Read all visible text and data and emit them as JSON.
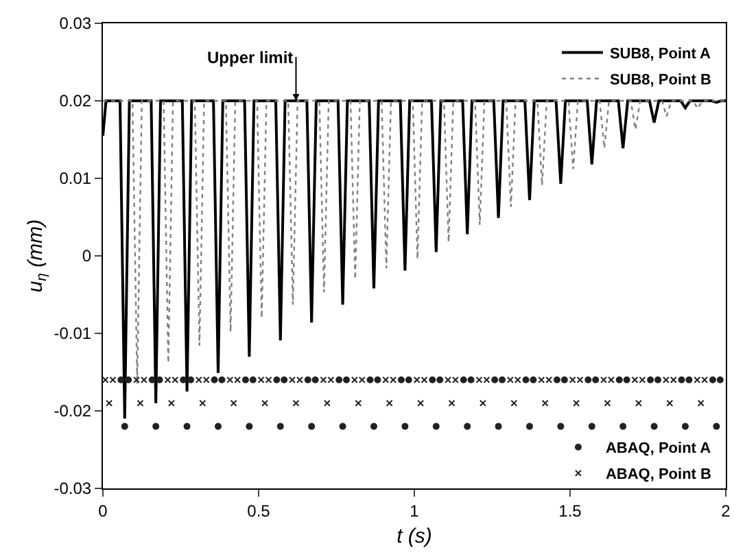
{
  "chart_data": {
    "type": "line",
    "xlabel": "t (s)",
    "ylabel": "u$_{η}$ (mm)",
    "xlim": [
      0,
      2
    ],
    "ylim": [
      -0.03,
      0.03
    ],
    "xticks": [
      0,
      0.5,
      1,
      1.5,
      2
    ],
    "yticks": [
      -0.03,
      -0.02,
      -0.01,
      0,
      0.01,
      0.02,
      0.03
    ],
    "legend": "right",
    "annotations": [
      {
        "text": "Upper limit",
        "x": 0.62,
        "y": 0.02
      }
    ],
    "series": [
      {
        "name": "SUB8, Point A",
        "line_style": "solid",
        "marker": "none",
        "color": "#000000",
        "x": [
          0,
          0.01,
          0.055,
          0.07,
          0.085,
          0.155,
          0.17,
          0.185,
          0.255,
          0.27,
          0.285,
          0.355,
          0.37,
          0.385,
          0.455,
          0.47,
          0.485,
          0.555,
          0.57,
          0.585,
          0.655,
          0.67,
          0.685,
          0.755,
          0.77,
          0.785,
          0.855,
          0.87,
          0.885,
          0.955,
          0.97,
          0.985,
          1.055,
          1.07,
          1.085,
          1.155,
          1.17,
          1.185,
          1.255,
          1.27,
          1.285,
          1.355,
          1.37,
          1.385,
          1.455,
          1.47,
          1.485,
          1.555,
          1.57,
          1.585,
          1.655,
          1.67,
          1.685,
          1.755,
          1.77,
          1.785,
          1.855,
          1.87,
          1.885,
          1.955,
          1.97,
          1.985,
          2
        ],
        "values": [
          0.0155,
          0.02,
          0.02,
          -0.021,
          0.02,
          0.02,
          -0.019,
          0.02,
          0.02,
          -0.0175,
          0.02,
          0.02,
          -0.0151,
          0.02,
          0.02,
          -0.013,
          0.02,
          0.02,
          -0.0109,
          0.02,
          0.02,
          -0.0086,
          0.02,
          0.02,
          -0.0063,
          0.02,
          0.02,
          -0.0042,
          0.02,
          0.02,
          -0.0019,
          0.02,
          0.02,
          0.0005,
          0.02,
          0.02,
          0.0028,
          0.02,
          0.02,
          0.0049,
          0.02,
          0.02,
          0.0072,
          0.02,
          0.02,
          0.0093,
          0.02,
          0.02,
          0.0118,
          0.02,
          0.02,
          0.0139,
          0.02,
          0.02,
          0.0172,
          0.02,
          0.02,
          0.0191,
          0.02,
          0.02,
          0.0198,
          0.02,
          0.02
        ]
      },
      {
        "name": "SUB8, Point B",
        "line_style": "dotted",
        "marker": "none",
        "color": "#808080",
        "x": [
          0,
          0.095,
          0.11,
          0.125,
          0.195,
          0.21,
          0.225,
          0.295,
          0.31,
          0.325,
          0.395,
          0.41,
          0.425,
          0.495,
          0.51,
          0.525,
          0.595,
          0.61,
          0.625,
          0.695,
          0.71,
          0.725,
          0.795,
          0.81,
          0.825,
          0.895,
          0.91,
          0.925,
          0.995,
          1.01,
          1.025,
          1.095,
          1.11,
          1.125,
          1.195,
          1.21,
          1.225,
          1.295,
          1.31,
          1.325,
          1.395,
          1.41,
          1.425,
          1.495,
          1.51,
          1.525,
          1.595,
          1.61,
          1.625,
          1.695,
          1.71,
          1.725,
          1.795,
          1.81,
          1.825,
          1.895,
          1.91,
          1.925,
          2
        ],
        "values": [
          0.02,
          0.02,
          -0.0165,
          0.02,
          0.02,
          -0.0138,
          0.02,
          0.02,
          -0.0116,
          0.02,
          0.02,
          -0.0098,
          0.02,
          0.02,
          -0.008,
          0.02,
          0.02,
          -0.0063,
          0.02,
          0.02,
          -0.0047,
          0.02,
          0.02,
          -0.003,
          0.02,
          0.02,
          -0.0016,
          0.02,
          0.02,
          -0.0004,
          0.02,
          0.02,
          0.0018,
          0.02,
          0.02,
          0.004,
          0.02,
          0.02,
          0.0063,
          0.02,
          0.02,
          0.0091,
          0.02,
          0.02,
          0.0112,
          0.02,
          0.02,
          0.0139,
          0.02,
          0.02,
          0.0163,
          0.02,
          0.02,
          0.018,
          0.02,
          0.02,
          0.019,
          0.02,
          0.02
        ]
      },
      {
        "name": "ABAQ, Point A",
        "type": "scatter",
        "marker": "circle",
        "color": "#222222",
        "x": [
          0.058,
          0.07,
          0.082,
          0.158,
          0.17,
          0.182,
          0.258,
          0.27,
          0.282,
          0.358,
          0.37,
          0.382,
          0.458,
          0.47,
          0.482,
          0.558,
          0.57,
          0.582,
          0.658,
          0.67,
          0.682,
          0.758,
          0.77,
          0.782,
          0.858,
          0.87,
          0.882,
          0.958,
          0.97,
          0.982,
          1.058,
          1.07,
          1.082,
          1.158,
          1.17,
          1.182,
          1.258,
          1.27,
          1.282,
          1.358,
          1.37,
          1.382,
          1.458,
          1.47,
          1.482,
          1.558,
          1.57,
          1.582,
          1.658,
          1.67,
          1.682,
          1.758,
          1.77,
          1.782,
          1.858,
          1.87,
          1.882,
          1.958,
          1.97,
          1.982
        ],
        "values": [
          -0.016,
          -0.022,
          -0.016,
          -0.016,
          -0.022,
          -0.016,
          -0.016,
          -0.022,
          -0.016,
          -0.016,
          -0.022,
          -0.016,
          -0.016,
          -0.022,
          -0.016,
          -0.016,
          -0.022,
          -0.016,
          -0.016,
          -0.022,
          -0.016,
          -0.016,
          -0.022,
          -0.016,
          -0.016,
          -0.022,
          -0.016,
          -0.016,
          -0.022,
          -0.016,
          -0.016,
          -0.022,
          -0.016,
          -0.016,
          -0.022,
          -0.016,
          -0.016,
          -0.022,
          -0.016,
          -0.016,
          -0.022,
          -0.016,
          -0.016,
          -0.022,
          -0.016,
          -0.016,
          -0.022,
          -0.016,
          -0.016,
          -0.022,
          -0.016,
          -0.016,
          -0.022,
          -0.016,
          -0.016,
          -0.022,
          -0.016,
          -0.016,
          -0.022,
          -0.016
        ]
      },
      {
        "name": "ABAQ, Point B",
        "type": "scatter",
        "marker": "cross",
        "color": "#222222",
        "x": [
          0.008,
          0.02,
          0.032,
          0.108,
          0.12,
          0.132,
          0.208,
          0.22,
          0.232,
          0.308,
          0.32,
          0.332,
          0.408,
          0.42,
          0.432,
          0.508,
          0.52,
          0.532,
          0.608,
          0.62,
          0.632,
          0.708,
          0.72,
          0.732,
          0.808,
          0.82,
          0.832,
          0.908,
          0.92,
          0.932,
          1.008,
          1.02,
          1.032,
          1.108,
          1.12,
          1.132,
          1.208,
          1.22,
          1.232,
          1.308,
          1.32,
          1.332,
          1.408,
          1.42,
          1.432,
          1.508,
          1.52,
          1.532,
          1.608,
          1.62,
          1.632,
          1.708,
          1.72,
          1.732,
          1.808,
          1.82,
          1.832,
          1.908,
          1.92,
          1.932
        ],
        "values": [
          -0.016,
          -0.019,
          -0.016,
          -0.016,
          -0.019,
          -0.016,
          -0.016,
          -0.019,
          -0.016,
          -0.016,
          -0.019,
          -0.016,
          -0.016,
          -0.019,
          -0.016,
          -0.016,
          -0.019,
          -0.016,
          -0.016,
          -0.019,
          -0.016,
          -0.016,
          -0.019,
          -0.016,
          -0.016,
          -0.019,
          -0.016,
          -0.016,
          -0.019,
          -0.016,
          -0.016,
          -0.019,
          -0.016,
          -0.016,
          -0.019,
          -0.016,
          -0.016,
          -0.019,
          -0.016,
          -0.016,
          -0.019,
          -0.016,
          -0.016,
          -0.019,
          -0.016,
          -0.016,
          -0.019,
          -0.016,
          -0.016,
          -0.019,
          -0.016,
          -0.016,
          -0.019,
          -0.016,
          -0.016,
          -0.019,
          -0.016,
          -0.016,
          -0.019,
          -0.016
        ]
      }
    ]
  }
}
